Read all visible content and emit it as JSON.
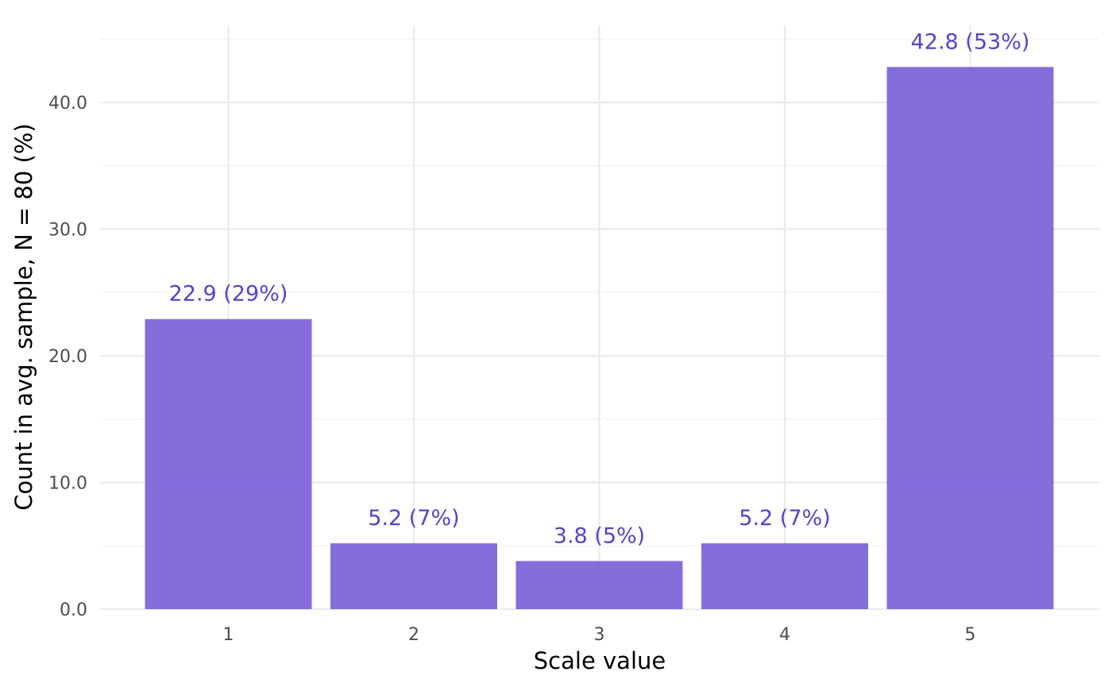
{
  "chart_data": {
    "type": "bar",
    "categories": [
      "1",
      "2",
      "3",
      "4",
      "5"
    ],
    "values": [
      22.9,
      5.2,
      3.8,
      5.2,
      42.8
    ],
    "data_labels": [
      "22.9 (29%)",
      "5.2 (7%)",
      "3.8 (5%)",
      "5.2 (7%)",
      "42.8 (53%)"
    ],
    "xlabel": "Scale value",
    "ylabel": "Count in avg. sample, N = 80 (%)",
    "ylim": [
      0,
      45
    ],
    "y_ticks": [
      0,
      10,
      20,
      30,
      40
    ],
    "y_tick_labels": [
      "0.0",
      "10.0",
      "20.0",
      "30.0",
      "40.0"
    ],
    "y_minor_ticks": [
      5,
      15,
      25,
      35,
      45
    ],
    "grid": true,
    "legend": "none",
    "colors": {
      "bar": "#7b61d9",
      "label": "#5a40cf"
    }
  }
}
